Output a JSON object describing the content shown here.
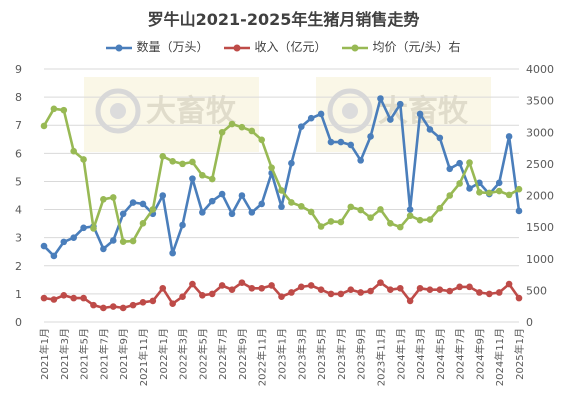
{
  "chart_data": {
    "type": "line",
    "title": "罗牛山2021-2025年生猪月销售走势",
    "categories": [
      "2021年1月",
      "2021年2月",
      "2021年3月",
      "2021年4月",
      "2021年5月",
      "2021年6月",
      "2021年7月",
      "2021年8月",
      "2021年9月",
      "2021年10月",
      "2021年11月",
      "2021年12月",
      "2022年1月",
      "2022年2月",
      "2022年3月",
      "2022年4月",
      "2022年5月",
      "2022年6月",
      "2022年7月",
      "2022年8月",
      "2022年9月",
      "2022年10月",
      "2022年11月",
      "2022年12月",
      "2023年1月",
      "2023年2月",
      "2023年3月",
      "2023年4月",
      "2023年5月",
      "2023年6月",
      "2023年7月",
      "2023年8月",
      "2023年9月",
      "2023年10月",
      "2023年11月",
      "2023年12月",
      "2024年1月",
      "2024年2月",
      "2024年3月",
      "2024年4月",
      "2024年5月",
      "2024年6月",
      "2024年7月",
      "2024年8月",
      "2024年9月",
      "2024年10月",
      "2024年11月",
      "2024年12月",
      "2025年1月"
    ],
    "x_tick_labels": [
      "2021年1月",
      "2021年3月",
      "2021年5月",
      "2021年7月",
      "2021年9月",
      "2021年11月",
      "2022年1月",
      "2022年3月",
      "2022年5月",
      "2022年7月",
      "2022年9月",
      "2022年11月",
      "2023年1月",
      "2023年3月",
      "2023年5月",
      "2023年7月",
      "2023年9月",
      "2023年11月",
      "2024年1月",
      "2024年3月",
      "2024年5月",
      "2024年7月",
      "2024年9月",
      "2024年11月",
      "2025年1月"
    ],
    "y_left": {
      "min": 0,
      "max": 9,
      "step": 1,
      "ticks": [
        "0",
        "1",
        "2",
        "3",
        "4",
        "5",
        "6",
        "7",
        "8",
        "9"
      ]
    },
    "y_right": {
      "min": 0,
      "max": 4000,
      "step": 500,
      "ticks": [
        "0",
        "500",
        "1000",
        "1500",
        "2000",
        "2500",
        "3000",
        "3500",
        "4000"
      ]
    },
    "grid": true,
    "legend_position": "top",
    "series": [
      {
        "name": "数量（万头）",
        "axis": "left",
        "color": "#4a7ebb",
        "values": [
          2.7,
          2.35,
          2.85,
          3.0,
          3.35,
          3.4,
          2.6,
          2.9,
          3.85,
          4.25,
          4.2,
          3.85,
          4.5,
          2.45,
          3.45,
          5.1,
          3.9,
          4.3,
          4.55,
          3.85,
          4.5,
          3.9,
          4.2,
          5.3,
          4.1,
          5.65,
          6.95,
          7.25,
          7.4,
          6.4,
          6.4,
          6.3,
          5.75,
          6.6,
          7.95,
          7.2,
          7.75,
          4.0,
          7.4,
          6.85,
          6.55,
          5.45,
          5.65,
          4.75,
          4.95,
          4.55,
          4.95,
          6.6,
          3.95
        ]
      },
      {
        "name": "收入（亿元）",
        "axis": "left",
        "color": "#be4b48",
        "values": [
          0.85,
          0.8,
          0.95,
          0.85,
          0.85,
          0.6,
          0.5,
          0.55,
          0.5,
          0.6,
          0.7,
          0.75,
          1.2,
          0.65,
          0.9,
          1.35,
          0.95,
          1.0,
          1.3,
          1.15,
          1.4,
          1.2,
          1.2,
          1.3,
          0.9,
          1.05,
          1.25,
          1.3,
          1.15,
          1.0,
          1.0,
          1.15,
          1.05,
          1.1,
          1.4,
          1.15,
          1.2,
          0.75,
          1.2,
          1.15,
          1.15,
          1.1,
          1.25,
          1.25,
          1.05,
          1.0,
          1.05,
          1.35,
          0.85
        ]
      },
      {
        "name": "均价（元/头）右",
        "axis": "right",
        "color": "#98b954",
        "values": [
          3100,
          3370,
          3350,
          2700,
          2570,
          1480,
          1940,
          1970,
          1270,
          1280,
          1560,
          1780,
          2620,
          2540,
          2500,
          2530,
          2320,
          2260,
          3000,
          3130,
          3080,
          3020,
          2880,
          2440,
          2080,
          1890,
          1830,
          1740,
          1510,
          1590,
          1580,
          1820,
          1770,
          1650,
          1780,
          1560,
          1500,
          1680,
          1610,
          1620,
          1800,
          2000,
          2190,
          2520,
          2050,
          2040,
          2070,
          2010,
          2100
        ]
      }
    ],
    "watermark": "大畜牧"
  }
}
